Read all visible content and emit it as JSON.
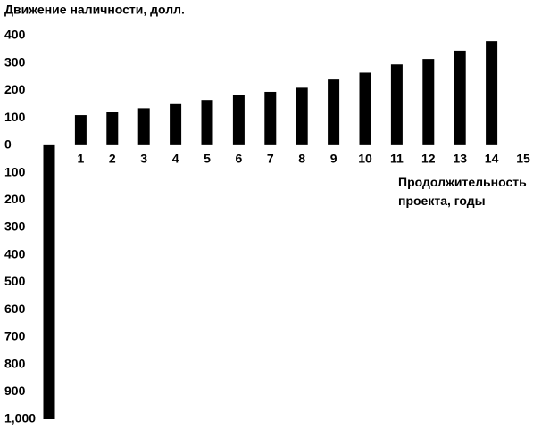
{
  "chart_data": {
    "type": "bar",
    "title": "Движение наличности, долл.",
    "x_label": "Продолжительность проекта, годы",
    "categories": [
      null,
      "1",
      "2",
      "3",
      "4",
      "5",
      "6",
      "7",
      "8",
      "9",
      "10",
      "11",
      "12",
      "13",
      "14",
      "15"
    ],
    "values": [
      -1000,
      110,
      120,
      135,
      150,
      165,
      185,
      195,
      210,
      240,
      265,
      295,
      315,
      345,
      380,
      null
    ],
    "color": "#000000",
    "ylim": [
      -1000,
      400
    ],
    "yticks": [
      400,
      300,
      200,
      100,
      0,
      {
        "value": -100,
        "label": "100"
      },
      {
        "value": -200,
        "label": "200"
      },
      {
        "value": -300,
        "label": "300"
      },
      {
        "value": -400,
        "label": "400"
      },
      {
        "value": -500,
        "label": "500"
      },
      {
        "value": -600,
        "label": "600"
      },
      {
        "value": -700,
        "label": "700"
      },
      {
        "value": -800,
        "label": "800"
      },
      {
        "value": -900,
        "label": "900"
      },
      {
        "value": -1000,
        "label": "1,000"
      }
    ],
    "grid": false
  }
}
